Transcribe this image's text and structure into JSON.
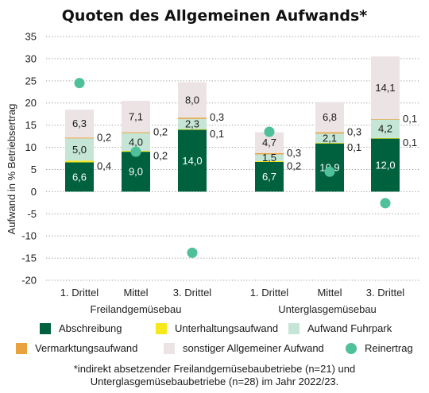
{
  "chart_data": {
    "type": "bar",
    "stacked": true,
    "title": "Quoten des Allgemeinen Aufwands*",
    "ylabel": "Aufwand in % Betriebsertrag",
    "ylim": [
      -20,
      35
    ],
    "yticks": [
      "35",
      "30",
      "25",
      "20",
      "15",
      "10",
      "5",
      "0",
      "-5",
      "-10",
      "-15",
      "-20"
    ],
    "ytick_values": [
      35,
      30,
      25,
      20,
      15,
      10,
      5,
      0,
      -5,
      -10,
      -15,
      -20
    ],
    "grid": true,
    "groups": [
      {
        "label": "Freilandgemüsebau",
        "categories": [
          "1. Drittel",
          "Mittel",
          "3. Drittel"
        ]
      },
      {
        "label": "Unterglasgemüsebau",
        "categories": [
          "1. Drittel",
          "Mittel",
          "3. Drittel"
        ]
      }
    ],
    "series": [
      {
        "name": "Abschreibung",
        "color": "#00613f",
        "values": [
          6.6,
          9.0,
          14.0,
          6.7,
          10.9,
          12.0
        ],
        "labels": [
          "6,6",
          "9,0",
          "14,0",
          "6,7",
          "10,9",
          "12,0"
        ]
      },
      {
        "name": "Unterhaltungsaufwand",
        "color": "#f7e81c",
        "values": [
          0.4,
          0.2,
          0.1,
          0.2,
          0.1,
          0.1
        ],
        "labels": [
          "0,4",
          "0,2",
          "0,1",
          "0,2",
          "0,1",
          "0,1"
        ]
      },
      {
        "name": "Aufwand Fuhrpark",
        "color": "#c5e6d6",
        "values": [
          5.0,
          4.0,
          2.3,
          1.5,
          2.1,
          4.2
        ],
        "labels": [
          "5,0",
          "4,0",
          "2,3",
          "1,5",
          "2,1",
          "4,2"
        ]
      },
      {
        "name": "Vermarktungsaufwand",
        "color": "#e8a33f",
        "values": [
          0.2,
          0.2,
          0.3,
          0.3,
          0.3,
          0.1
        ],
        "labels": [
          "0,2",
          "0,2",
          "0,3",
          "0,3",
          "0,3",
          "0,1"
        ]
      },
      {
        "name": "sonstiger Allgemeiner Aufwand",
        "color": "#ebe3e4",
        "values": [
          6.3,
          7.1,
          8.0,
          4.7,
          6.8,
          14.1
        ],
        "labels": [
          "6,3",
          "7,1",
          "8,0",
          "4,7",
          "6,8",
          "14,1"
        ]
      }
    ],
    "reinertrag": {
      "name": "Reinertrag",
      "color": "#4fc09a",
      "values": [
        24.5,
        9.0,
        -13.8,
        13.5,
        4.5,
        -2.6
      ]
    }
  },
  "footnote": {
    "line1": "*indirekt absetzender Freilandgemüsebaubetriebe (n=21) und",
    "line2": "Unterglasgemüsebaubetriebe (n=28) im Jahr 2022/23."
  }
}
